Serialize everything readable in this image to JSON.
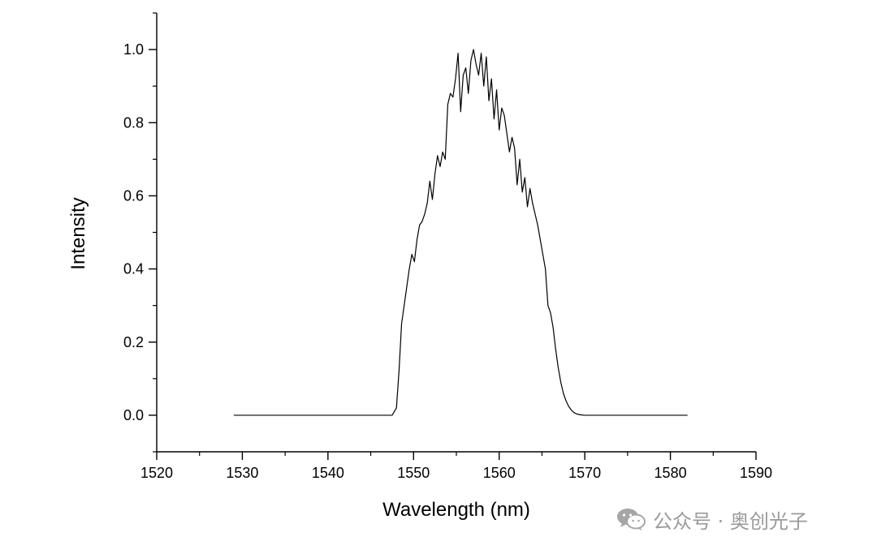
{
  "chart_data": {
    "type": "line",
    "title": "",
    "xlabel": "Wavelength (nm)",
    "ylabel": "Intensity",
    "xlim": [
      1520,
      1590
    ],
    "ylim": [
      -0.1,
      1.1
    ],
    "x_ticks": [
      1520,
      1530,
      1540,
      1550,
      1560,
      1570,
      1580,
      1590
    ],
    "y_ticks": [
      0.0,
      0.2,
      0.4,
      0.6,
      0.8,
      1.0
    ],
    "x_tick_labels": [
      "1520",
      "1530",
      "1540",
      "1550",
      "1560",
      "1570",
      "1580",
      "1590"
    ],
    "y_tick_labels": [
      "0.0",
      "0.2",
      "0.4",
      "0.6",
      "0.8",
      "1.0"
    ],
    "grid": false,
    "legend": "none",
    "line_color": "#000000",
    "series": [
      {
        "x": [
          1529,
          1535,
          1540,
          1545,
          1547.5,
          1548.0,
          1548.3,
          1548.6,
          1548.9,
          1549.2,
          1549.5,
          1549.8,
          1550.1,
          1550.4,
          1550.7,
          1551.0,
          1551.3,
          1551.6,
          1551.9,
          1552.2,
          1552.5,
          1552.8,
          1553.1,
          1553.4,
          1553.7,
          1554.0,
          1554.3,
          1554.6,
          1554.9,
          1555.2,
          1555.5,
          1555.8,
          1556.1,
          1556.4,
          1556.7,
          1557.0,
          1557.3,
          1557.6,
          1557.9,
          1558.2,
          1558.5,
          1558.8,
          1559.1,
          1559.4,
          1559.7,
          1560.0,
          1560.3,
          1560.6,
          1560.9,
          1561.2,
          1561.5,
          1561.8,
          1562.1,
          1562.4,
          1562.7,
          1563.0,
          1563.3,
          1563.6,
          1563.9,
          1564.2,
          1564.5,
          1564.8,
          1565.1,
          1565.4,
          1565.7,
          1566.0,
          1566.3,
          1566.6,
          1566.9,
          1567.2,
          1567.5,
          1567.8,
          1568.1,
          1568.4,
          1568.7,
          1569.0,
          1569.3,
          1569.6,
          1570.0,
          1570.5,
          1571.0,
          1572,
          1575,
          1578,
          1582
        ],
        "y": [
          0.0,
          0.0,
          0.0,
          0.0,
          0.0,
          0.02,
          0.12,
          0.25,
          0.3,
          0.35,
          0.4,
          0.44,
          0.42,
          0.48,
          0.52,
          0.53,
          0.55,
          0.58,
          0.64,
          0.59,
          0.66,
          0.71,
          0.68,
          0.72,
          0.7,
          0.85,
          0.88,
          0.87,
          0.92,
          0.99,
          0.83,
          0.93,
          0.95,
          0.88,
          0.97,
          1.0,
          0.96,
          0.93,
          0.99,
          0.9,
          0.98,
          0.86,
          0.92,
          0.81,
          0.89,
          0.78,
          0.84,
          0.82,
          0.77,
          0.72,
          0.76,
          0.73,
          0.63,
          0.7,
          0.61,
          0.65,
          0.57,
          0.62,
          0.58,
          0.55,
          0.52,
          0.48,
          0.44,
          0.4,
          0.3,
          0.28,
          0.24,
          0.18,
          0.13,
          0.09,
          0.06,
          0.04,
          0.025,
          0.015,
          0.008,
          0.004,
          0.002,
          0.001,
          0.0,
          0.0,
          0.0,
          0.0,
          0.0,
          0.0,
          0.0
        ]
      }
    ]
  },
  "watermark": {
    "text": "公众号 · 奥创光子",
    "icon": "wechat-icon",
    "color": "#9a9a9a"
  }
}
